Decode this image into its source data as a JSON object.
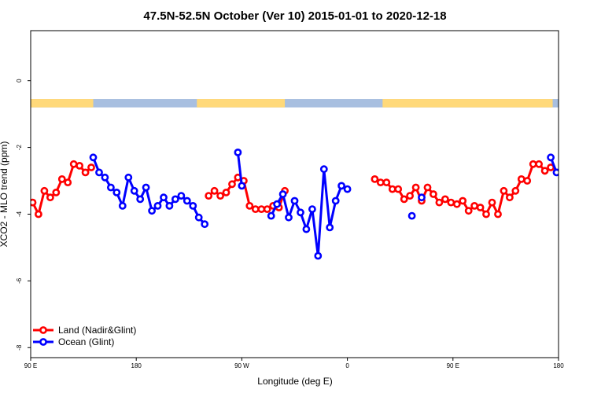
{
  "chart_data": {
    "type": "line",
    "title": "47.5N-52.5N October (Ver 10)   2015-01-01 to 2020-12-18",
    "xlabel": "Longitude (deg E)",
    "ylabel": "XCO2 - MLO trend (ppm)",
    "xlim": [
      -90,
      180
    ],
    "ylim": [
      -8.3,
      1.5
    ],
    "x_ticks": [
      {
        "value": -90,
        "label": "90 E"
      },
      {
        "value": -36,
        "label": "180"
      },
      {
        "value": 18,
        "label": "90 W"
      },
      {
        "value": 72,
        "label": "0"
      },
      {
        "value": 126,
        "label": "90 E"
      },
      {
        "value": 180,
        "label": "180"
      }
    ],
    "y_ticks": [
      0,
      -2,
      -4,
      -6,
      -8
    ],
    "land_sea_strip": {
      "y_range": [
        -0.8,
        -0.55
      ],
      "land_color": "#ffd97a",
      "ocean_color": "#a8bfe0",
      "land_intervals": [
        [
          -90,
          -58
        ],
        [
          -5,
          40
        ],
        [
          90,
          177
        ]
      ]
    },
    "legend": {
      "position": "bottom-left"
    },
    "series": [
      {
        "name": "Land (Nadir&Glint)",
        "color": "#ff0000",
        "segments": [
          [
            [
              -89,
              -3.65
            ],
            [
              -86,
              -4.0
            ],
            [
              -83,
              -3.3
            ],
            [
              -80,
              -3.5
            ],
            [
              -77,
              -3.35
            ],
            [
              -74,
              -2.95
            ],
            [
              -71,
              -3.05
            ],
            [
              -68,
              -2.5
            ],
            [
              -65,
              -2.55
            ],
            [
              -62,
              -2.75
            ],
            [
              -59,
              -2.6
            ]
          ],
          [
            [
              1,
              -3.45
            ],
            [
              4,
              -3.3
            ],
            [
              7,
              -3.45
            ],
            [
              10,
              -3.35
            ],
            [
              13,
              -3.1
            ],
            [
              16,
              -2.9
            ],
            [
              19,
              -3.0
            ],
            [
              22,
              -3.75
            ],
            [
              25,
              -3.85
            ],
            [
              28,
              -3.85
            ],
            [
              31,
              -3.85
            ],
            [
              34,
              -3.75
            ],
            [
              37,
              -3.8
            ],
            [
              40,
              -3.3
            ]
          ],
          [
            [
              86,
              -2.95
            ],
            [
              89,
              -3.05
            ],
            [
              92,
              -3.05
            ],
            [
              95,
              -3.25
            ],
            [
              98,
              -3.25
            ],
            [
              101,
              -3.55
            ],
            [
              104,
              -3.45
            ],
            [
              107,
              -3.2
            ],
            [
              110,
              -3.6
            ],
            [
              113,
              -3.2
            ],
            [
              116,
              -3.4
            ],
            [
              119,
              -3.65
            ],
            [
              122,
              -3.55
            ],
            [
              125,
              -3.65
            ],
            [
              128,
              -3.7
            ],
            [
              131,
              -3.6
            ],
            [
              134,
              -3.9
            ],
            [
              137,
              -3.75
            ],
            [
              140,
              -3.8
            ],
            [
              143,
              -4.0
            ],
            [
              146,
              -3.65
            ],
            [
              149,
              -4.0
            ],
            [
              152,
              -3.3
            ],
            [
              155,
              -3.5
            ],
            [
              158,
              -3.3
            ],
            [
              161,
              -2.95
            ],
            [
              164,
              -3.0
            ],
            [
              167,
              -2.5
            ],
            [
              170,
              -2.5
            ],
            [
              173,
              -2.7
            ],
            [
              176,
              -2.6
            ]
          ]
        ]
      },
      {
        "name": "Ocean (Glint)",
        "color": "#0000ff",
        "segments": [
          [
            [
              -58,
              -2.3
            ],
            [
              -55,
              -2.75
            ],
            [
              -52,
              -2.9
            ],
            [
              -49,
              -3.2
            ],
            [
              -46,
              -3.35
            ],
            [
              -43,
              -3.75
            ],
            [
              -40,
              -2.9
            ],
            [
              -37,
              -3.3
            ],
            [
              -34,
              -3.55
            ],
            [
              -31,
              -3.2
            ],
            [
              -28,
              -3.9
            ],
            [
              -25,
              -3.75
            ],
            [
              -22,
              -3.5
            ],
            [
              -19,
              -3.75
            ],
            [
              -16,
              -3.55
            ],
            [
              -13,
              -3.45
            ],
            [
              -10,
              -3.6
            ],
            [
              -7,
              -3.75
            ],
            [
              -4,
              -4.1
            ],
            [
              -1,
              -4.3
            ]
          ],
          [
            [
              16,
              -2.15
            ],
            [
              18,
              -3.15
            ]
          ],
          [
            [
              33,
              -4.05
            ],
            [
              36,
              -3.7
            ],
            [
              39,
              -3.4
            ],
            [
              42,
              -4.1
            ],
            [
              45,
              -3.6
            ],
            [
              48,
              -3.95
            ],
            [
              51,
              -4.45
            ],
            [
              54,
              -3.85
            ],
            [
              57,
              -5.25
            ],
            [
              60,
              -2.65
            ],
            [
              63,
              -4.4
            ],
            [
              66,
              -3.6
            ],
            [
              69,
              -3.15
            ],
            [
              72,
              -3.25
            ]
          ],
          [
            [
              105,
              -4.05
            ]
          ],
          [
            [
              110,
              -3.5
            ]
          ],
          [
            [
              176,
              -2.3
            ],
            [
              179,
              -2.75
            ],
            [
              182,
              -2.95
            ],
            [
              185,
              -3.25
            ],
            [
              188,
              -3.35
            ],
            [
              191,
              -3.75
            ],
            [
              194,
              -2.9
            ],
            [
              197,
              -3.3
            ]
          ]
        ]
      }
    ]
  }
}
